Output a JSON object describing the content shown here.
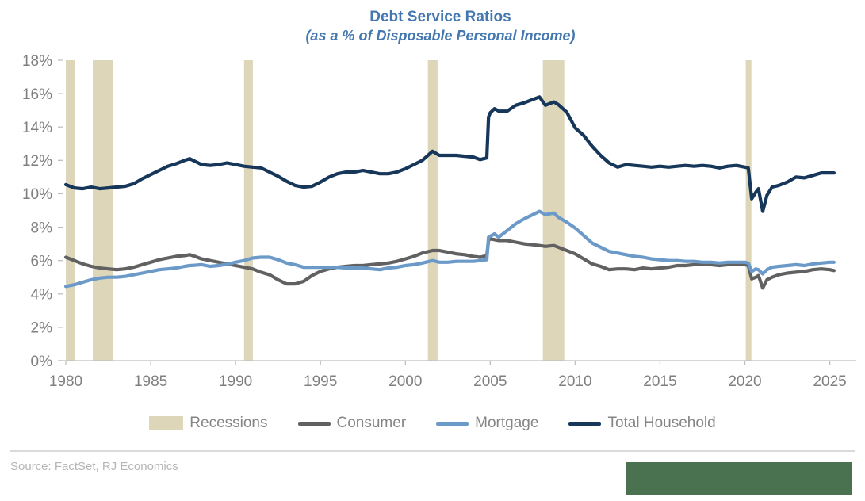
{
  "header": {
    "title": "Debt Service Ratios",
    "subtitle": "(as a % of Disposable Personal Income)"
  },
  "legend": [
    {
      "label": "Recessions",
      "type": "band",
      "color": "#ded6b9"
    },
    {
      "label": "Consumer",
      "type": "line",
      "color": "#616161"
    },
    {
      "label": "Mortgage",
      "type": "line",
      "color": "#6b9ac9"
    },
    {
      "label": "Total Household",
      "type": "line",
      "color": "#16365a"
    }
  ],
  "footer": {
    "source": "Source: FactSet, RJ Economics"
  },
  "colors": {
    "title_blue": "#4477af",
    "recession_band": "#ded6b9",
    "consumer": "#616161",
    "mortgage": "#6b9ac9",
    "total_household": "#16365a",
    "axis_text": "#7f7f7f",
    "axis_line": "#bfbfbf",
    "legend_text": "#858585",
    "source_text": "#b5b5b5",
    "green_box": "#4a7150"
  },
  "chart_data": {
    "type": "line",
    "title": "Debt Service Ratios",
    "subtitle": "(as a % of Disposable Personal Income)",
    "xlabel": "",
    "ylabel": "",
    "xlim": [
      1980,
      2025.3
    ],
    "ylim": [
      0,
      18
    ],
    "x_ticks": [
      1980,
      1985,
      1990,
      1995,
      2000,
      2005,
      2010,
      2015,
      2020,
      2025
    ],
    "y_ticks": [
      0,
      2,
      4,
      6,
      8,
      10,
      12,
      14,
      16,
      18
    ],
    "y_tick_suffix": "%",
    "grid": false,
    "legend_position": "bottom",
    "recession_color": "#ded6b9",
    "recessions": [
      [
        1980.0,
        1980.55
      ],
      [
        1981.59,
        1982.8
      ],
      [
        1990.5,
        1991.02
      ],
      [
        2001.33,
        2001.9
      ],
      [
        2008.1,
        2009.36
      ],
      [
        2020.05,
        2020.38
      ]
    ],
    "x": [
      1980,
      1980.5,
      1981,
      1981.5,
      1982,
      1982.5,
      1983,
      1983.5,
      1984,
      1984.5,
      1985,
      1985.5,
      1986,
      1986.5,
      1987,
      1987.3,
      1987.6,
      1988,
      1988.5,
      1989,
      1989.5,
      1990,
      1990.5,
      1991,
      1991.5,
      1992,
      1992.5,
      1993,
      1993.5,
      1994,
      1994.5,
      1995,
      1995.5,
      1996,
      1996.5,
      1997,
      1997.5,
      1998,
      1998.5,
      1999,
      1999.5,
      2000,
      2000.5,
      2001,
      2001.6,
      2002,
      2002.5,
      2003,
      2003.5,
      2004,
      2004.4,
      2004.8,
      2004.9,
      2005,
      2005.25,
      2005.5,
      2006,
      2006.5,
      2007,
      2007.5,
      2007.9,
      2008.25,
      2008.75,
      2009,
      2009.5,
      2010,
      2010.5,
      2011,
      2011.5,
      2012,
      2012.5,
      2013,
      2013.5,
      2014,
      2014.5,
      2015,
      2015.5,
      2016,
      2016.5,
      2017,
      2017.5,
      2018,
      2018.5,
      2019,
      2019.5,
      2020,
      2020.2,
      2020.4,
      2020.65,
      2020.8,
      2021.05,
      2021.3,
      2021.6,
      2022,
      2022.5,
      2023,
      2023.5,
      2024,
      2024.5,
      2025,
      2025.25
    ],
    "series": [
      {
        "name": "Consumer",
        "color": "#616161",
        "values": [
          6.2,
          6.0,
          5.8,
          5.65,
          5.55,
          5.5,
          5.45,
          5.5,
          5.6,
          5.75,
          5.9,
          6.05,
          6.15,
          6.25,
          6.3,
          6.35,
          6.25,
          6.1,
          6.0,
          5.9,
          5.8,
          5.7,
          5.6,
          5.5,
          5.3,
          5.15,
          4.85,
          4.6,
          4.6,
          4.75,
          5.1,
          5.35,
          5.5,
          5.6,
          5.65,
          5.7,
          5.7,
          5.75,
          5.8,
          5.85,
          5.95,
          6.1,
          6.25,
          6.45,
          6.6,
          6.6,
          6.5,
          6.4,
          6.35,
          6.25,
          6.2,
          6.3,
          7.2,
          7.3,
          7.25,
          7.2,
          7.2,
          7.1,
          7.0,
          6.95,
          6.9,
          6.85,
          6.9,
          6.8,
          6.6,
          6.4,
          6.1,
          5.8,
          5.65,
          5.45,
          5.5,
          5.5,
          5.45,
          5.55,
          5.5,
          5.55,
          5.6,
          5.7,
          5.7,
          5.75,
          5.8,
          5.75,
          5.7,
          5.75,
          5.75,
          5.75,
          5.7,
          4.9,
          5.0,
          5.1,
          4.35,
          4.85,
          5.0,
          5.15,
          5.25,
          5.3,
          5.35,
          5.45,
          5.5,
          5.45,
          5.4
        ]
      },
      {
        "name": "Mortgage",
        "color": "#6b9ac9",
        "values": [
          4.45,
          4.55,
          4.7,
          4.85,
          4.95,
          5.0,
          5.0,
          5.05,
          5.15,
          5.25,
          5.35,
          5.45,
          5.5,
          5.55,
          5.65,
          5.7,
          5.72,
          5.75,
          5.65,
          5.7,
          5.78,
          5.9,
          6.0,
          6.15,
          6.2,
          6.2,
          6.05,
          5.85,
          5.75,
          5.6,
          5.6,
          5.6,
          5.6,
          5.6,
          5.55,
          5.55,
          5.55,
          5.5,
          5.45,
          5.55,
          5.6,
          5.7,
          5.75,
          5.85,
          6.0,
          5.9,
          5.9,
          5.95,
          5.95,
          5.95,
          6.0,
          6.05,
          7.4,
          7.45,
          7.6,
          7.4,
          7.8,
          8.2,
          8.5,
          8.75,
          8.95,
          8.75,
          8.85,
          8.6,
          8.3,
          7.95,
          7.5,
          7.05,
          6.8,
          6.55,
          6.45,
          6.35,
          6.25,
          6.2,
          6.1,
          6.05,
          6.0,
          6.0,
          5.95,
          5.95,
          5.9,
          5.9,
          5.85,
          5.9,
          5.9,
          5.9,
          5.85,
          5.35,
          5.5,
          5.45,
          5.2,
          5.45,
          5.6,
          5.65,
          5.7,
          5.75,
          5.7,
          5.8,
          5.85,
          5.9,
          5.9
        ]
      },
      {
        "name": "Total Household",
        "color": "#16365a",
        "values": [
          10.55,
          10.35,
          10.3,
          10.4,
          10.3,
          10.35,
          10.4,
          10.45,
          10.6,
          10.9,
          11.15,
          11.4,
          11.65,
          11.8,
          12.0,
          12.1,
          11.95,
          11.75,
          11.7,
          11.75,
          11.85,
          11.75,
          11.65,
          11.6,
          11.55,
          11.3,
          11.05,
          10.75,
          10.5,
          10.4,
          10.45,
          10.7,
          11.0,
          11.2,
          11.3,
          11.3,
          11.4,
          11.3,
          11.2,
          11.2,
          11.3,
          11.5,
          11.75,
          12.0,
          12.55,
          12.3,
          12.3,
          12.3,
          12.25,
          12.2,
          12.05,
          12.15,
          14.6,
          14.85,
          15.1,
          14.95,
          14.95,
          15.3,
          15.45,
          15.65,
          15.8,
          15.3,
          15.5,
          15.35,
          14.9,
          13.95,
          13.5,
          12.85,
          12.3,
          11.85,
          11.6,
          11.75,
          11.7,
          11.65,
          11.6,
          11.65,
          11.6,
          11.65,
          11.7,
          11.65,
          11.7,
          11.65,
          11.55,
          11.65,
          11.7,
          11.6,
          11.55,
          9.7,
          10.1,
          10.3,
          8.95,
          9.9,
          10.4,
          10.5,
          10.7,
          11.0,
          10.95,
          11.1,
          11.25,
          11.25,
          11.25
        ]
      }
    ]
  }
}
